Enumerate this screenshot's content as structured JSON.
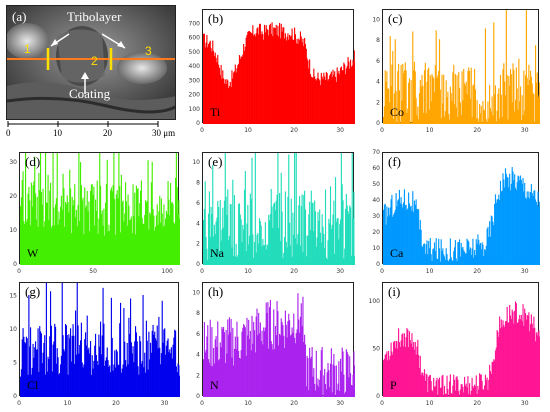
{
  "sem": {
    "panel_label": "(a)",
    "tribolayer_label": "Tribolayer",
    "coating_label": "Coating",
    "markers": [
      "1",
      "2",
      "3"
    ],
    "scale_ticks": [
      "0",
      "10",
      "20",
      "30 μm"
    ],
    "line_color": "#ff7a1a",
    "marker_color": "#ffe000"
  },
  "chart_data": [
    {
      "id": "b",
      "type": "bar",
      "panel_label": "(b)",
      "element": "Ti",
      "color": "#ff0000",
      "xlim": [
        0,
        33
      ],
      "ylim": [
        0,
        800
      ],
      "xticks": [
        0,
        10,
        20,
        30
      ],
      "yticks": [
        0,
        100,
        200,
        300,
        400,
        500,
        600,
        700
      ],
      "profile": [
        [
          0,
          590
        ],
        [
          1.5,
          570
        ],
        [
          3,
          470
        ],
        [
          4,
          350
        ],
        [
          5,
          290
        ],
        [
          6,
          310
        ],
        [
          7,
          380
        ],
        [
          8,
          470
        ],
        [
          9,
          570
        ],
        [
          10,
          620
        ],
        [
          11,
          650
        ],
        [
          12,
          660
        ],
        [
          13,
          640
        ],
        [
          14,
          670
        ],
        [
          15,
          660
        ],
        [
          16,
          660
        ],
        [
          17,
          650
        ],
        [
          18,
          640
        ],
        [
          19,
          650
        ],
        [
          20,
          620
        ],
        [
          21,
          600
        ],
        [
          22,
          560
        ],
        [
          23,
          420
        ],
        [
          24,
          330
        ],
        [
          25,
          320
        ],
        [
          26,
          320
        ],
        [
          27,
          320
        ],
        [
          28,
          330
        ],
        [
          29,
          350
        ],
        [
          30,
          380
        ],
        [
          31,
          410
        ],
        [
          32,
          440
        ],
        [
          33,
          470
        ]
      ],
      "noise": 55
    },
    {
      "id": "c",
      "type": "bar",
      "panel_label": "(c)",
      "element": "Co",
      "color": "#ffa500",
      "xlim": [
        0,
        33
      ],
      "ylim": [
        0,
        11
      ],
      "xticks": [
        0,
        10,
        20,
        30
      ],
      "yticks": [
        0,
        2,
        4,
        6,
        8,
        10
      ],
      "profile": [
        [
          0,
          3
        ],
        [
          33,
          3
        ]
      ],
      "noise": 3,
      "spiky": true
    },
    {
      "id": "d",
      "type": "bar",
      "panel_label": "(d)",
      "element": "W",
      "color": "#44ee00",
      "xlim": [
        0,
        108
      ],
      "ylim": [
        0,
        33
      ],
      "xticks": [
        0,
        50,
        100
      ],
      "yticks": [
        0,
        10,
        20,
        30
      ],
      "profile": [
        [
          0,
          20
        ],
        [
          20,
          18
        ],
        [
          50,
          16
        ],
        [
          80,
          17
        ],
        [
          108,
          20
        ]
      ],
      "noise": 8,
      "spiky": true
    },
    {
      "id": "e",
      "type": "bar",
      "panel_label": "(e)",
      "element": "Na",
      "color": "#22ddbb",
      "xlim": [
        0,
        33
      ],
      "ylim": [
        0,
        11
      ],
      "xticks": [
        0,
        10,
        20,
        30
      ],
      "yticks": [
        0,
        2,
        4,
        6,
        8,
        10
      ],
      "profile": [
        [
          0,
          4
        ],
        [
          33,
          4
        ]
      ],
      "noise": 3.5,
      "spiky": true
    },
    {
      "id": "f",
      "type": "bar",
      "panel_label": "(f)",
      "element": "Ca",
      "color": "#0099ff",
      "xlim": [
        0,
        33
      ],
      "ylim": [
        0,
        70
      ],
      "xticks": [
        0,
        10,
        20,
        30
      ],
      "yticks": [
        0,
        10,
        20,
        30,
        40,
        50,
        60,
        70
      ],
      "profile": [
        [
          0,
          30
        ],
        [
          2,
          38
        ],
        [
          4,
          42
        ],
        [
          6,
          40
        ],
        [
          7,
          32
        ],
        [
          8,
          18
        ],
        [
          9,
          10
        ],
        [
          12,
          9
        ],
        [
          15,
          10
        ],
        [
          18,
          10
        ],
        [
          21,
          12
        ],
        [
          22,
          18
        ],
        [
          23,
          30
        ],
        [
          24,
          46
        ],
        [
          25,
          52
        ],
        [
          27,
          55
        ],
        [
          29,
          52
        ],
        [
          31,
          45
        ],
        [
          33,
          40
        ]
      ],
      "noise": 8
    },
    {
      "id": "g",
      "type": "bar",
      "panel_label": "(g)",
      "element": "Cl",
      "color": "#0000ee",
      "xlim": [
        0,
        33
      ],
      "ylim": [
        0,
        17
      ],
      "xticks": [
        0,
        10,
        20,
        30
      ],
      "yticks": [
        0,
        5,
        10,
        15
      ],
      "profile": [
        [
          0,
          7
        ],
        [
          33,
          7
        ]
      ],
      "noise": 4,
      "spiky": true
    },
    {
      "id": "h",
      "type": "bar",
      "panel_label": "(h)",
      "element": "N",
      "color": "#aa22ee",
      "xlim": [
        0,
        33
      ],
      "ylim": [
        0,
        11
      ],
      "xticks": [
        0,
        10,
        20,
        30
      ],
      "yticks": [
        0,
        2,
        4,
        6,
        8,
        10
      ],
      "profile": [
        [
          0,
          5
        ],
        [
          8,
          5.5
        ],
        [
          14,
          7
        ],
        [
          18,
          7
        ],
        [
          21.5,
          8
        ],
        [
          22,
          3
        ],
        [
          25,
          2.5
        ],
        [
          33,
          2.5
        ]
      ],
      "noise": 2.5
    },
    {
      "id": "i",
      "type": "bar",
      "panel_label": "(i)",
      "element": "P",
      "color": "#ff1493",
      "xlim": [
        0,
        33
      ],
      "ylim": [
        0,
        120
      ],
      "xticks": [
        0,
        10,
        20,
        30
      ],
      "yticks": [
        0,
        50,
        100
      ],
      "profile": [
        [
          0,
          40
        ],
        [
          2,
          55
        ],
        [
          4,
          65
        ],
        [
          6,
          62
        ],
        [
          7,
          55
        ],
        [
          8,
          30
        ],
        [
          9,
          15
        ],
        [
          12,
          12
        ],
        [
          16,
          12
        ],
        [
          20,
          13
        ],
        [
          22,
          18
        ],
        [
          23,
          40
        ],
        [
          24,
          70
        ],
        [
          26,
          85
        ],
        [
          28,
          90
        ],
        [
          30,
          85
        ],
        [
          32,
          70
        ],
        [
          33,
          60
        ]
      ],
      "noise": 12
    }
  ]
}
